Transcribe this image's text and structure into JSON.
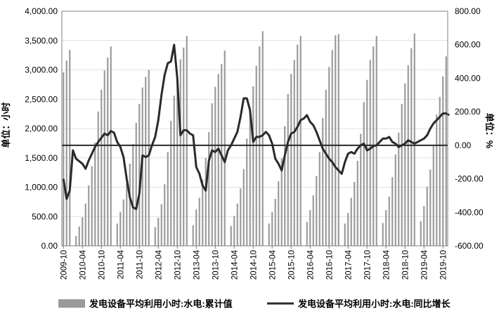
{
  "chart_data": {
    "type": "bar+line",
    "title": "",
    "left_axis": {
      "label": "单位：小时",
      "min": 0,
      "max": 4000,
      "ticks": [
        "0.00",
        "500.00",
        "1,000.00",
        "1,500.00",
        "2,000.00",
        "2,500.00",
        "3,000.00",
        "3,500.00",
        "4,000.00"
      ]
    },
    "right_axis": {
      "label": "单位：%",
      "min": -600,
      "max": 800,
      "ticks": [
        "-600.00",
        "-400.00",
        "-200.00",
        "0.00",
        "200.00",
        "400.00",
        "600.00",
        "800.00"
      ]
    },
    "x_tick_labels": [
      "2009-10",
      "2010-04",
      "2010-10",
      "2011-04",
      "2011-10",
      "2012-04",
      "2012-10",
      "2013-04",
      "2013-10",
      "2014-04",
      "2014-10",
      "2015-04",
      "2015-10",
      "2016-04",
      "2016-10",
      "2017-04",
      "2017-10",
      "2018-04",
      "2018-10",
      "2019-04",
      "2019-10"
    ],
    "x_start_month": "2009-10",
    "legend": [
      {
        "label": "发电设备平均利用小时:水电:累计值",
        "type": "bar",
        "color": "#9a9a9a"
      },
      {
        "label": "发电设备平均利用小时:水电:同比增长",
        "type": "line",
        "color": "#2a2a2a"
      }
    ],
    "series": [
      {
        "name": "发电设备平均利用小时:水电:累计值",
        "axis": "left",
        "values": [
          2960,
          3160,
          3340,
          0,
          170,
          330,
          490,
          720,
          1030,
          1360,
          1760,
          2290,
          2660,
          2990,
          3210,
          3400,
          0,
          380,
          580,
          790,
          1070,
          1400,
          1740,
          2100,
          2420,
          2700,
          2880,
          3000,
          0,
          320,
          480,
          710,
          1050,
          1600,
          2130,
          2560,
          2900,
          3180,
          3380,
          3580,
          0,
          350,
          620,
          820,
          1130,
          1500,
          1940,
          2430,
          2710,
          2930,
          3100,
          3330,
          0,
          340,
          510,
          720,
          980,
          1310,
          1830,
          2330,
          2720,
          3070,
          3400,
          3660,
          0,
          380,
          580,
          800,
          1100,
          1490,
          2040,
          2590,
          2930,
          3170,
          3430,
          3580,
          0,
          410,
          610,
          860,
          1190,
          1600,
          2180,
          2660,
          3050,
          3340,
          3590,
          3610,
          0,
          380,
          560,
          820,
          1090,
          1450,
          1910,
          2450,
          2830,
          3170,
          3400,
          3580,
          0,
          390,
          610,
          840,
          1170,
          1560,
          1930,
          2420,
          2770,
          3080,
          3370,
          3620,
          0,
          420,
          680,
          1010,
          1300,
          1700,
          2240,
          2540,
          2890,
          3230
        ]
      },
      {
        "name": "发电设备平均利用小时:水电:同比增长",
        "axis": "right",
        "values": [
          -200,
          -320,
          -270,
          -30,
          -80,
          -95,
          -110,
          -140,
          -90,
          -50,
          -10,
          20,
          45,
          70,
          60,
          85,
          75,
          20,
          -10,
          -70,
          -200,
          -310,
          -370,
          -380,
          -290,
          -60,
          -70,
          -60,
          0,
          50,
          150,
          300,
          420,
          490,
          500,
          600,
          400,
          60,
          90,
          90,
          70,
          60,
          -130,
          -170,
          -240,
          -270,
          -90,
          -30,
          -40,
          -20,
          -60,
          -100,
          -30,
          0,
          40,
          80,
          170,
          280,
          280,
          210,
          20,
          50,
          50,
          60,
          80,
          60,
          10,
          -80,
          -110,
          -150,
          -60,
          20,
          70,
          80,
          110,
          150,
          160,
          180,
          140,
          120,
          80,
          30,
          -20,
          -50,
          -80,
          -100,
          -130,
          -150,
          -170,
          -100,
          -50,
          -40,
          -50,
          -20,
          0,
          10,
          -30,
          -20,
          -5,
          0,
          20,
          40,
          40,
          50,
          20,
          10,
          -10,
          0,
          10,
          30,
          20,
          10,
          20,
          30,
          40,
          60,
          100,
          130,
          150,
          170,
          190,
          190,
          180
        ]
      }
    ],
    "reference_line": {
      "axis": "right",
      "value": 0
    }
  }
}
